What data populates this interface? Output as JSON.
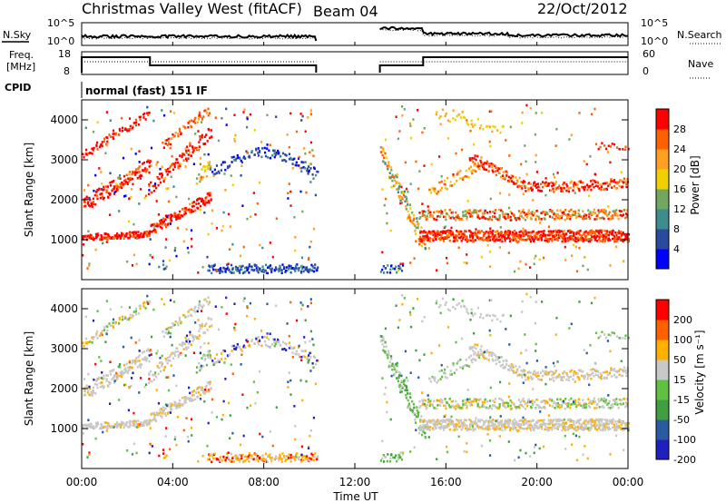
{
  "header": {
    "station": "Christmas Valley West (fitACF)",
    "beam": "Beam 04",
    "date": "22/Oct/2012"
  },
  "noise_panel": {
    "left_label": "N.Sky",
    "left_ticks": [
      "10^5",
      "10^0"
    ],
    "right_ticks": [
      "10^5",
      "10^0"
    ],
    "right_label": "N.Search"
  },
  "freq_panel": {
    "left_label_1": "Freq.",
    "left_label_2": "[MHz]",
    "left_ticks": [
      "18",
      "8"
    ],
    "right_ticks": [
      "60",
      "0"
    ],
    "right_label": "Nave"
  },
  "cpid": {
    "label": "CPID",
    "program": "normal (fast) 151 IF"
  },
  "chart_data": [
    {
      "type": "heatmap",
      "name": "power",
      "ylabel": "Slant Range [km]",
      "yticks": [
        "4000",
        "3000",
        "2000",
        "1000"
      ],
      "colorbar_label": "Power [dB]",
      "colorbar_ticks": [
        "28",
        "24",
        "20",
        "16",
        "12",
        "8",
        "4"
      ],
      "colors": [
        "#0000ff",
        "#2a4aa0",
        "#3f8c8c",
        "#70a860",
        "#f0d000",
        "#ffa020",
        "#ff6000",
        "#ff0000"
      ]
    },
    {
      "type": "heatmap",
      "name": "velocity",
      "ylabel": "Slant Range [km]",
      "yticks": [
        "4000",
        "3000",
        "2000",
        "1000"
      ],
      "colorbar_label": "Velocity [m s⁻¹]",
      "colorbar_ticks": [
        "200",
        "100",
        "50",
        "15",
        "-15",
        "-50",
        "-100",
        "-200"
      ],
      "colors": [
        "#2020c0",
        "#2a5aa0",
        "#40a040",
        "#60c040",
        "#c8c8c8",
        "#ffb000",
        "#ff6000",
        "#ff0000"
      ]
    }
  ],
  "xaxis": {
    "label": "Time UT",
    "ticks": [
      "00:00",
      "04:00",
      "08:00",
      "12:00",
      "16:00",
      "20:00",
      "00:00"
    ]
  }
}
